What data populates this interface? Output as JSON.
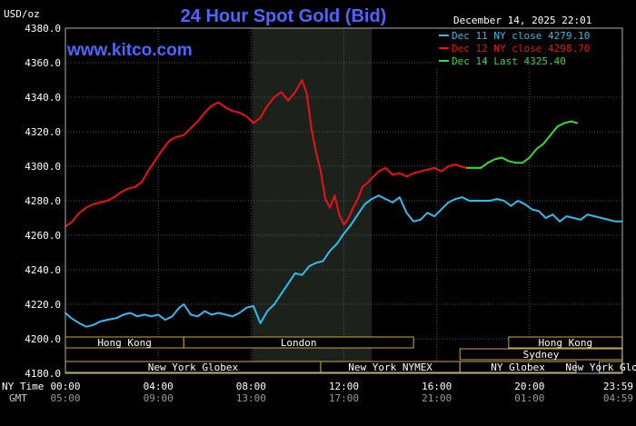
{
  "chart_data": {
    "type": "line",
    "title": "24 Hour Spot Gold (Bid)",
    "ylabel": "USD/oz",
    "watermark": "www.kitco.com",
    "date_stamp": "December 14, 2025 22:01",
    "ylim": [
      4180,
      4380
    ],
    "y_ticks": [
      "4380.0",
      "4360.0",
      "4340.0",
      "4320.0",
      "4300.0",
      "4280.0",
      "4260.0",
      "4240.0",
      "4220.0",
      "4200.0",
      "4180.0"
    ],
    "xlim": [
      0,
      24
    ],
    "x_ticks": {
      "row_label_ny": "NY Time",
      "row_label_gmt": "GMT",
      "ny": [
        "00:00",
        "04:00",
        "08:00",
        "12:00",
        "16:00",
        "20:00",
        "23:59"
      ],
      "gmt": [
        "05:00",
        "09:00",
        "13:00",
        "17:00",
        "21:00",
        "01:00",
        "04:59"
      ]
    },
    "shaded_window": [
      8.05,
      13.2
    ],
    "legend": [
      {
        "label": "Dec 11 NY close 4279.10",
        "color": "#33bbee"
      },
      {
        "label": "Dec 12 NY close 4298.70",
        "color": "#ee1111"
      },
      {
        "label": "Dec 14 Last 4325.40",
        "color": "#33dd33"
      }
    ],
    "legend_position": "top-right",
    "grid": true,
    "series": [
      {
        "name": "Dec 11 NY close 4279.10",
        "color": "#33bbee",
        "x": [
          0,
          0.25,
          0.6,
          0.9,
          1.2,
          1.5,
          1.8,
          2.2,
          2.5,
          2.8,
          3.1,
          3.4,
          3.7,
          4.0,
          4.3,
          4.6,
          4.9,
          5.1,
          5.4,
          5.7,
          6.0,
          6.3,
          6.6,
          6.9,
          7.2,
          7.5,
          7.8,
          8.1,
          8.4,
          8.7,
          9.0,
          9.3,
          9.6,
          9.9,
          10.2,
          10.5,
          10.8,
          11.1,
          11.4,
          11.7,
          12.0,
          12.3,
          12.6,
          12.9,
          13.2,
          13.5,
          13.8,
          14.1,
          14.4,
          14.7,
          15.0,
          15.3,
          15.6,
          15.9,
          16.2,
          16.5,
          16.8,
          17.1,
          17.4,
          17.7,
          18.0,
          18.3,
          18.6,
          18.9,
          19.2,
          19.5,
          19.8,
          20.1,
          20.4,
          20.7,
          21.0,
          21.3,
          21.6,
          21.9,
          22.2,
          22.5,
          22.8,
          23.1,
          23.4,
          23.7,
          23.99
        ],
        "y": [
          4215,
          4212,
          4209,
          4207,
          4208,
          4210,
          4211,
          4212,
          4214,
          4215,
          4213,
          4214,
          4213,
          4214,
          4211,
          4213,
          4218,
          4220,
          4214,
          4213,
          4216,
          4214,
          4215,
          4214,
          4213,
          4215,
          4218,
          4219,
          4209,
          4216,
          4220,
          4226,
          4232,
          4238,
          4237,
          4242,
          4244,
          4245,
          4251,
          4255,
          4261,
          4266,
          4272,
          4278,
          4281,
          4283,
          4281,
          4279,
          4282,
          4273,
          4268,
          4269,
          4273,
          4271,
          4275,
          4279,
          4281,
          4282,
          4280,
          4280,
          4280,
          4280,
          4281,
          4280,
          4277,
          4280,
          4278,
          4275,
          4274,
          4270,
          4272,
          4268,
          4271,
          4270,
          4269,
          4272,
          4271,
          4270,
          4269,
          4268,
          4268
        ]
      },
      {
        "name": "Dec 12 NY close 4298.70",
        "color": "#ee1111",
        "x": [
          0,
          0.3,
          0.6,
          0.9,
          1.2,
          1.5,
          1.8,
          2.1,
          2.4,
          2.7,
          3.0,
          3.3,
          3.6,
          3.9,
          4.2,
          4.5,
          4.8,
          5.1,
          5.4,
          5.7,
          6.0,
          6.3,
          6.6,
          6.9,
          7.2,
          7.5,
          7.8,
          8.1,
          8.4,
          8.7,
          9.0,
          9.3,
          9.6,
          9.9,
          10.2,
          10.4,
          10.6,
          10.8,
          11.0,
          11.2,
          11.4,
          11.6,
          11.8,
          12.0,
          12.2,
          12.4,
          12.6,
          12.8,
          13.0,
          13.2,
          13.5,
          13.8,
          14.1,
          14.4,
          14.7,
          15.0,
          15.3,
          15.6,
          15.9,
          16.2,
          16.5,
          16.8,
          17.0,
          17.3
        ],
        "y": [
          4265,
          4268,
          4273,
          4276,
          4278,
          4279,
          4280,
          4282,
          4285,
          4287,
          4288,
          4291,
          4298,
          4304,
          4310,
          4315,
          4317,
          4318,
          4322,
          4326,
          4331,
          4335,
          4337,
          4334,
          4332,
          4331,
          4329,
          4325,
          4328,
          4335,
          4340,
          4343,
          4338,
          4343,
          4350,
          4342,
          4322,
          4308,
          4297,
          4281,
          4276,
          4283,
          4272,
          4266,
          4270,
          4276,
          4281,
          4288,
          4290,
          4293,
          4297,
          4299,
          4295,
          4296,
          4294,
          4296,
          4297,
          4298,
          4299,
          4297,
          4300,
          4301,
          4300,
          4299
        ]
      },
      {
        "name": "Dec 14 Last 4325.40",
        "color": "#33dd33",
        "x": [
          17.3,
          17.6,
          17.9,
          18.2,
          18.5,
          18.8,
          19.1,
          19.4,
          19.7,
          20.0,
          20.3,
          20.6,
          20.9,
          21.2,
          21.5,
          21.8,
          22.05
        ],
        "y": [
          4299,
          4299,
          4299,
          4302,
          4304,
          4305,
          4303,
          4302,
          4302,
          4305,
          4310,
          4313,
          4318,
          4323,
          4325,
          4326,
          4325
        ]
      }
    ],
    "sessions": [
      {
        "label": "Hong Kong",
        "start": 0,
        "end": 5.1
      },
      {
        "label": "London",
        "start": 5.1,
        "end": 15.0
      },
      {
        "label": "New York Globex",
        "start": 0,
        "end": 11.0
      },
      {
        "label": "New York NYMEX",
        "start": 11.0,
        "end": 17.0
      },
      {
        "label": "NY Globex",
        "start": 17.0,
        "end": 22.0
      },
      {
        "label": "New York Globex",
        "start": 23.0,
        "end": 23.99
      },
      {
        "label": "Sydney",
        "start": 17.0,
        "end": 23.99
      },
      {
        "label": "Hong Kong",
        "start": 19.1,
        "end": 23.99
      }
    ]
  }
}
